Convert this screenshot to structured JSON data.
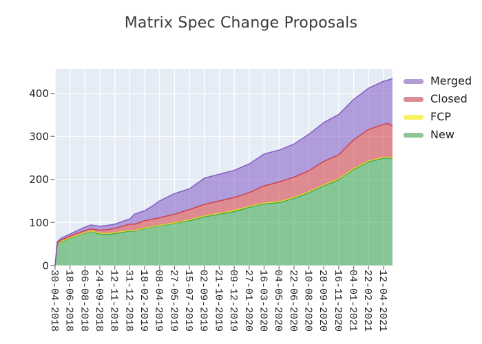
{
  "title": "Matrix Spec Change Proposals",
  "chart_data": {
    "type": "area",
    "stacked": true,
    "title": "Matrix Spec Change Proposals",
    "plot_background": "#e5ecf6",
    "grid_color": "#ffffff",
    "grid_on": true,
    "y_ticks": [
      0,
      100,
      200,
      300,
      400
    ],
    "y_max": 457,
    "x_tick_labels": [
      "30-04-2018",
      "18-06-2018",
      "06-08-2018",
      "24-09-2018",
      "12-11-2018",
      "31-12-2018",
      "18-02-2019",
      "08-04-2019",
      "27-05-2019",
      "15-07-2019",
      "02-09-2019",
      "21-10-2019",
      "09-12-2019",
      "27-01-2020",
      "16-03-2020",
      "04-05-2020",
      "22-06-2020",
      "10-08-2020",
      "28-09-2020",
      "16-11-2020",
      "04-01-2021",
      "22-02-2021",
      "12-04-2021"
    ],
    "x_max_ticks": 22.6,
    "x": [
      0,
      0.15,
      0.4,
      1,
      1.5,
      2,
      2.4,
      3,
      3.5,
      4,
      4.5,
      5,
      5.35,
      6,
      6.6,
      7,
      8,
      9,
      10,
      11,
      12,
      13,
      14,
      15,
      16,
      17,
      18,
      19,
      20,
      21,
      22,
      22.3,
      22.6
    ],
    "series": [
      {
        "name": "New",
        "base_color": "#46ae56",
        "line_color": "#31a046",
        "fill_opacity": 0.6,
        "values": [
          0,
          48,
          55,
          63,
          69,
          75,
          79,
          73,
          72,
          74,
          77,
          80,
          80,
          86,
          90,
          92,
          98,
          104,
          113,
          119,
          125,
          135,
          143,
          146,
          156,
          169,
          185,
          199,
          223,
          241,
          249,
          250,
          247
        ]
      },
      {
        "name": "FCP",
        "base_color": "#f8f500",
        "line_color": "#e0dc1e",
        "fill_opacity": 0.6,
        "values": [
          0,
          1,
          1,
          1,
          1,
          1,
          1,
          2,
          2,
          2,
          2,
          1,
          1,
          1,
          1,
          1,
          1,
          2,
          2,
          2,
          3,
          2,
          2,
          2,
          2,
          2,
          2,
          2,
          2,
          2,
          2,
          2,
          2
        ]
      },
      {
        "name": "Closed",
        "base_color": "#d74a4f",
        "line_color": "#c93a47",
        "fill_opacity": 0.6,
        "values": [
          0,
          3,
          3,
          4,
          5,
          5,
          5,
          7,
          9,
          10,
          12,
          15,
          15,
          17,
          17,
          18,
          20,
          24,
          27,
          29,
          30,
          32,
          40,
          46,
          47,
          49,
          55,
          56,
          67,
          73,
          77,
          78,
          75
        ]
      },
      {
        "name": "Merged",
        "base_color": "#8e68c9",
        "line_color": "#7b52bd",
        "fill_opacity": 0.6,
        "values": [
          0,
          3,
          4,
          5,
          6,
          8,
          9,
          9,
          10,
          10,
          11,
          12,
          24,
          23,
          32,
          39,
          48,
          48,
          61,
          62,
          63,
          67,
          74,
          74,
          77,
          85,
          90,
          94,
          94,
          96,
          100,
          101,
          110
        ]
      }
    ],
    "legend": {
      "position": "right-top",
      "entries": [
        {
          "label": "Merged",
          "color": "#b29dd6"
        },
        {
          "label": "Closed",
          "color": "#dc8d93"
        },
        {
          "label": "FCP",
          "color": "#f6f462"
        },
        {
          "label": "New",
          "color": "#8cc795"
        }
      ]
    }
  }
}
